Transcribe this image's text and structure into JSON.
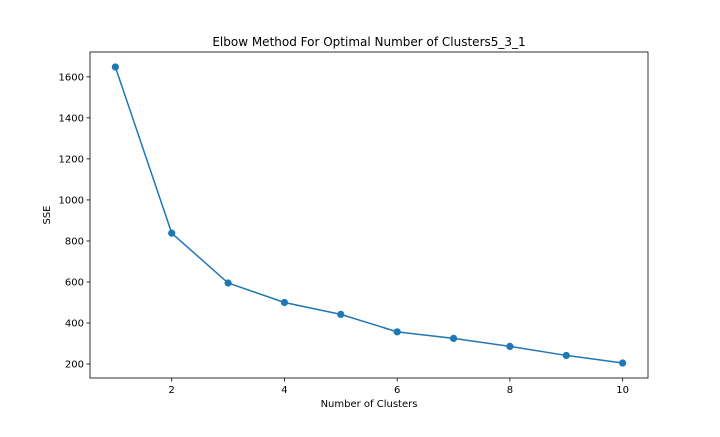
{
  "chart_data": {
    "type": "line",
    "title": "Elbow Method For Optimal Number of Clusters5_3_1",
    "xlabel": "Number of Clusters",
    "ylabel": "SSE",
    "x": [
      1,
      2,
      3,
      4,
      5,
      6,
      7,
      8,
      9,
      10
    ],
    "series": [
      {
        "values": [
          1648,
          838,
          595,
          500,
          442,
          357,
          325,
          286,
          242,
          205
        ],
        "color": "#1f77b4",
        "marker": "circle"
      }
    ],
    "xlim": [
      0.55,
      10.45
    ],
    "ylim": [
      132,
      1721
    ],
    "xticks": [
      2,
      4,
      6,
      8,
      10
    ],
    "yticks": [
      200,
      400,
      600,
      800,
      1000,
      1200,
      1400,
      1600
    ],
    "grid": false,
    "legend": "none"
  }
}
